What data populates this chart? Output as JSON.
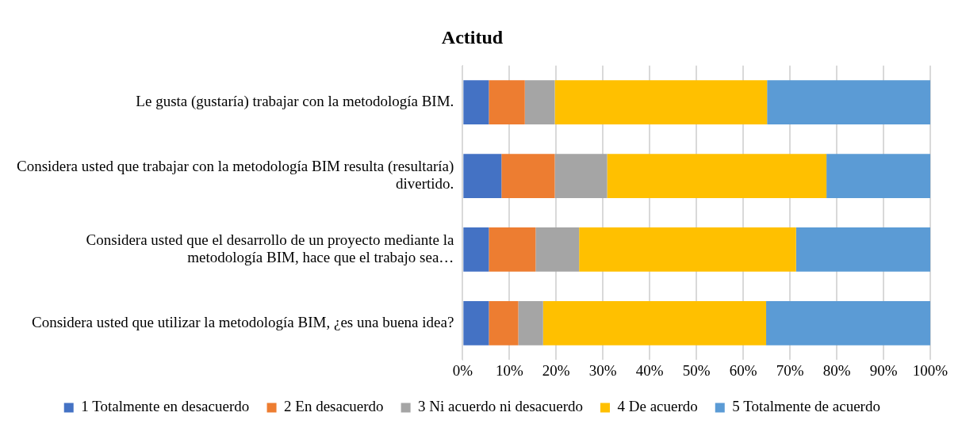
{
  "chart_data": {
    "type": "bar",
    "orientation": "horizontal",
    "stacked": true,
    "title": "Actitud",
    "categories": [
      "Le gusta (gustaría) trabajar con la metodología BIM.",
      "Considera usted que trabajar con la metodología BIM resulta (resultaría) divertido.",
      "Considera usted que el desarrollo de un proyecto mediante la metodología BIM, hace que el trabajo sea…",
      "Considera usted que utilizar la metodología BIM, ¿es una buena idea?"
    ],
    "series": [
      {
        "name": "1 Totalmente en desacuerdo",
        "color": "#4472c4",
        "values": [
          5.6,
          8.3,
          5.6,
          5.6
        ]
      },
      {
        "name": "2 En desacuerdo",
        "color": "#ed7d31",
        "values": [
          7.7,
          11.4,
          10.0,
          6.3
        ]
      },
      {
        "name": "3 Ni acuerdo ni desacuerdo",
        "color": "#a5a5a5",
        "values": [
          6.4,
          11.2,
          9.3,
          5.3
        ]
      },
      {
        "name": "4 De acuerdo",
        "color": "#ffc000",
        "values": [
          45.4,
          46.9,
          46.4,
          47.7
        ]
      },
      {
        "name": "5 Totalmente de acuerdo",
        "color": "#5b9bd5",
        "values": [
          34.9,
          22.2,
          28.7,
          35.1
        ]
      }
    ],
    "xlim": [
      0,
      100
    ],
    "xticks": [
      {
        "value": 0,
        "label": "0%"
      },
      {
        "value": 10,
        "label": "10%"
      },
      {
        "value": 20,
        "label": "20%"
      },
      {
        "value": 30,
        "label": "30%"
      },
      {
        "value": 40,
        "label": "40%"
      },
      {
        "value": 50,
        "label": "50%"
      },
      {
        "value": 60,
        "label": "60%"
      },
      {
        "value": 70,
        "label": "70%"
      },
      {
        "value": 80,
        "label": "80%"
      },
      {
        "value": 90,
        "label": "90%"
      },
      {
        "value": 100,
        "label": "100%"
      }
    ],
    "grid": "x",
    "legend": "bottom"
  }
}
